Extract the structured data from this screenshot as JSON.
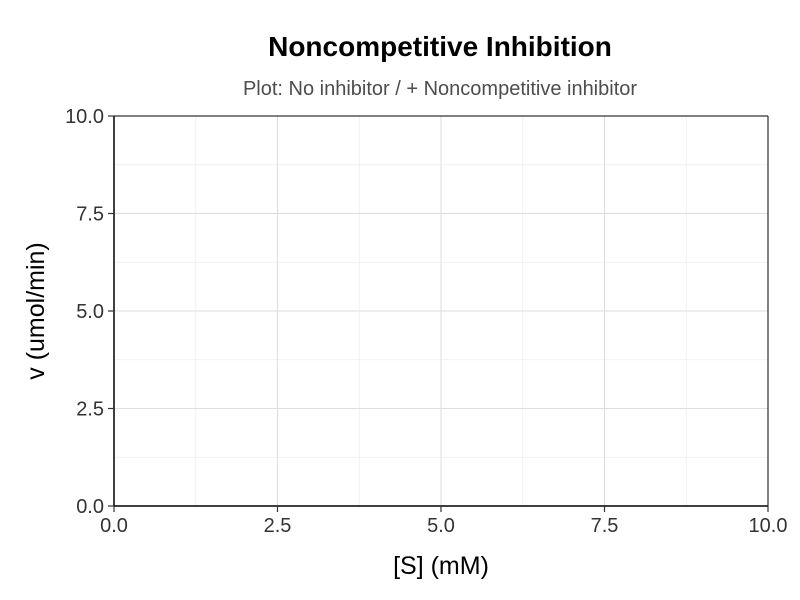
{
  "chart_data": {
    "type": "line",
    "title": "Noncompetitive Inhibition",
    "subtitle": "Plot: No inhibitor / + Noncompetitive inhibitor",
    "xlabel": "[S] (mM)",
    "ylabel": "v (umol/min)",
    "xlim": [
      0,
      10
    ],
    "ylim": [
      0,
      10
    ],
    "x_ticks": [
      "0.0",
      "2.5",
      "5.0",
      "7.5",
      "10.0"
    ],
    "y_ticks": [
      "0.0",
      "2.5",
      "5.0",
      "7.5",
      "10.0"
    ],
    "grid": true,
    "series": []
  }
}
